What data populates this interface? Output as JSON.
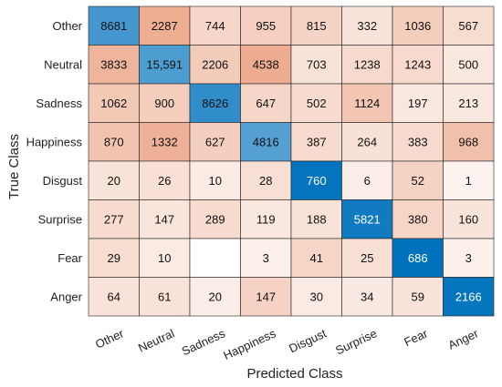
{
  "chart_data": {
    "type": "heatmap",
    "title": "",
    "xlabel": "Predicted Class",
    "ylabel": "True Class",
    "columns": [
      "Other",
      "Neutral",
      "Sadness",
      "Happiness",
      "Disgust",
      "Surprise",
      "Fear",
      "Anger"
    ],
    "rows": [
      "Other",
      "Neutral",
      "Sadness",
      "Happiness",
      "Disgust",
      "Surprise",
      "Fear",
      "Anger"
    ],
    "values": [
      [
        8681,
        2287,
        744,
        955,
        815,
        332,
        1036,
        567
      ],
      [
        3833,
        15591,
        2206,
        4538,
        703,
        1238,
        1243,
        500
      ],
      [
        1062,
        900,
        8626,
        647,
        502,
        1124,
        197,
        213
      ],
      [
        870,
        1332,
        627,
        4816,
        387,
        264,
        383,
        968
      ],
      [
        20,
        26,
        10,
        28,
        760,
        6,
        52,
        1
      ],
      [
        277,
        147,
        289,
        119,
        188,
        5821,
        380,
        160
      ],
      [
        29,
        10,
        null,
        3,
        41,
        25,
        686,
        3
      ],
      [
        64,
        61,
        20,
        147,
        30,
        34,
        59,
        2166
      ]
    ],
    "value_labels": [
      [
        "8681",
        "2287",
        "744",
        "955",
        "815",
        "332",
        "1036",
        "567"
      ],
      [
        "3833",
        "15,591",
        "2206",
        "4538",
        "703",
        "1238",
        "1243",
        "500"
      ],
      [
        "1062",
        "900",
        "8626",
        "647",
        "502",
        "1124",
        "197",
        "213"
      ],
      [
        "870",
        "1332",
        "627",
        "4816",
        "387",
        "264",
        "383",
        "968"
      ],
      [
        "20",
        "26",
        "10",
        "28",
        "760",
        "6",
        "52",
        "1"
      ],
      [
        "277",
        "147",
        "289",
        "119",
        "188",
        "5821",
        "380",
        "160"
      ],
      [
        "29",
        "10",
        "",
        "3",
        "41",
        "25",
        "686",
        "3"
      ],
      [
        "64",
        "61",
        "20",
        "147",
        "30",
        "34",
        "59",
        "2166"
      ]
    ],
    "colors": {
      "diagonal_high": "#0072bd",
      "diagonal_low": "#ffffff",
      "offdiag_high": "#d95319",
      "offdiag_low": "#ffffff",
      "grid": "#222222"
    },
    "grid": true,
    "legend": "none"
  }
}
